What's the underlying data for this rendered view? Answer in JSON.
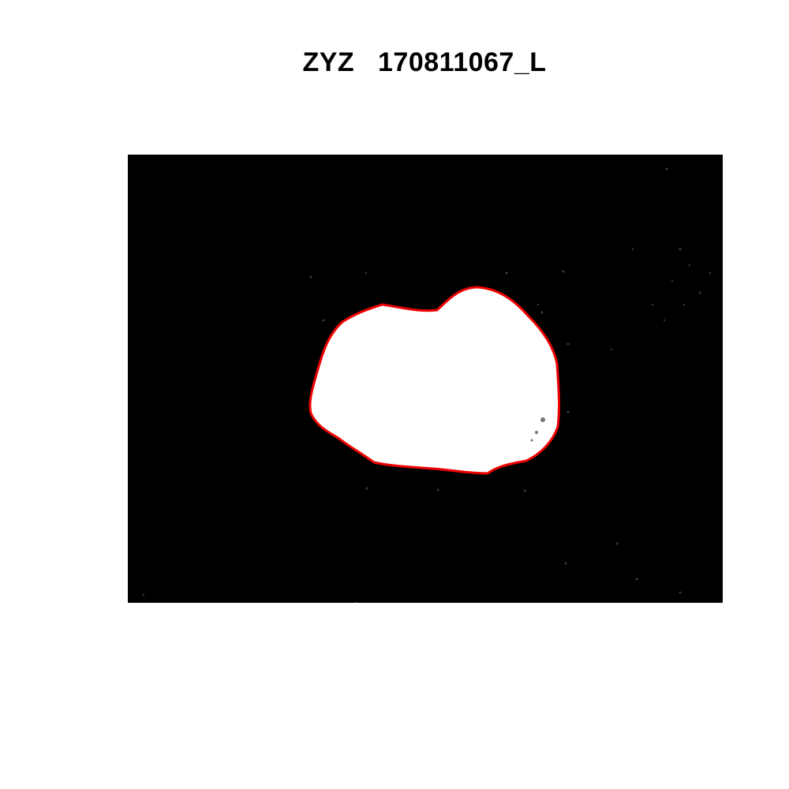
{
  "figure": {
    "title": "ZYZ   170811067_L",
    "background_color": "#000000",
    "region_fill_color": "#ffffff",
    "contour_color": "#ee0000"
  }
}
